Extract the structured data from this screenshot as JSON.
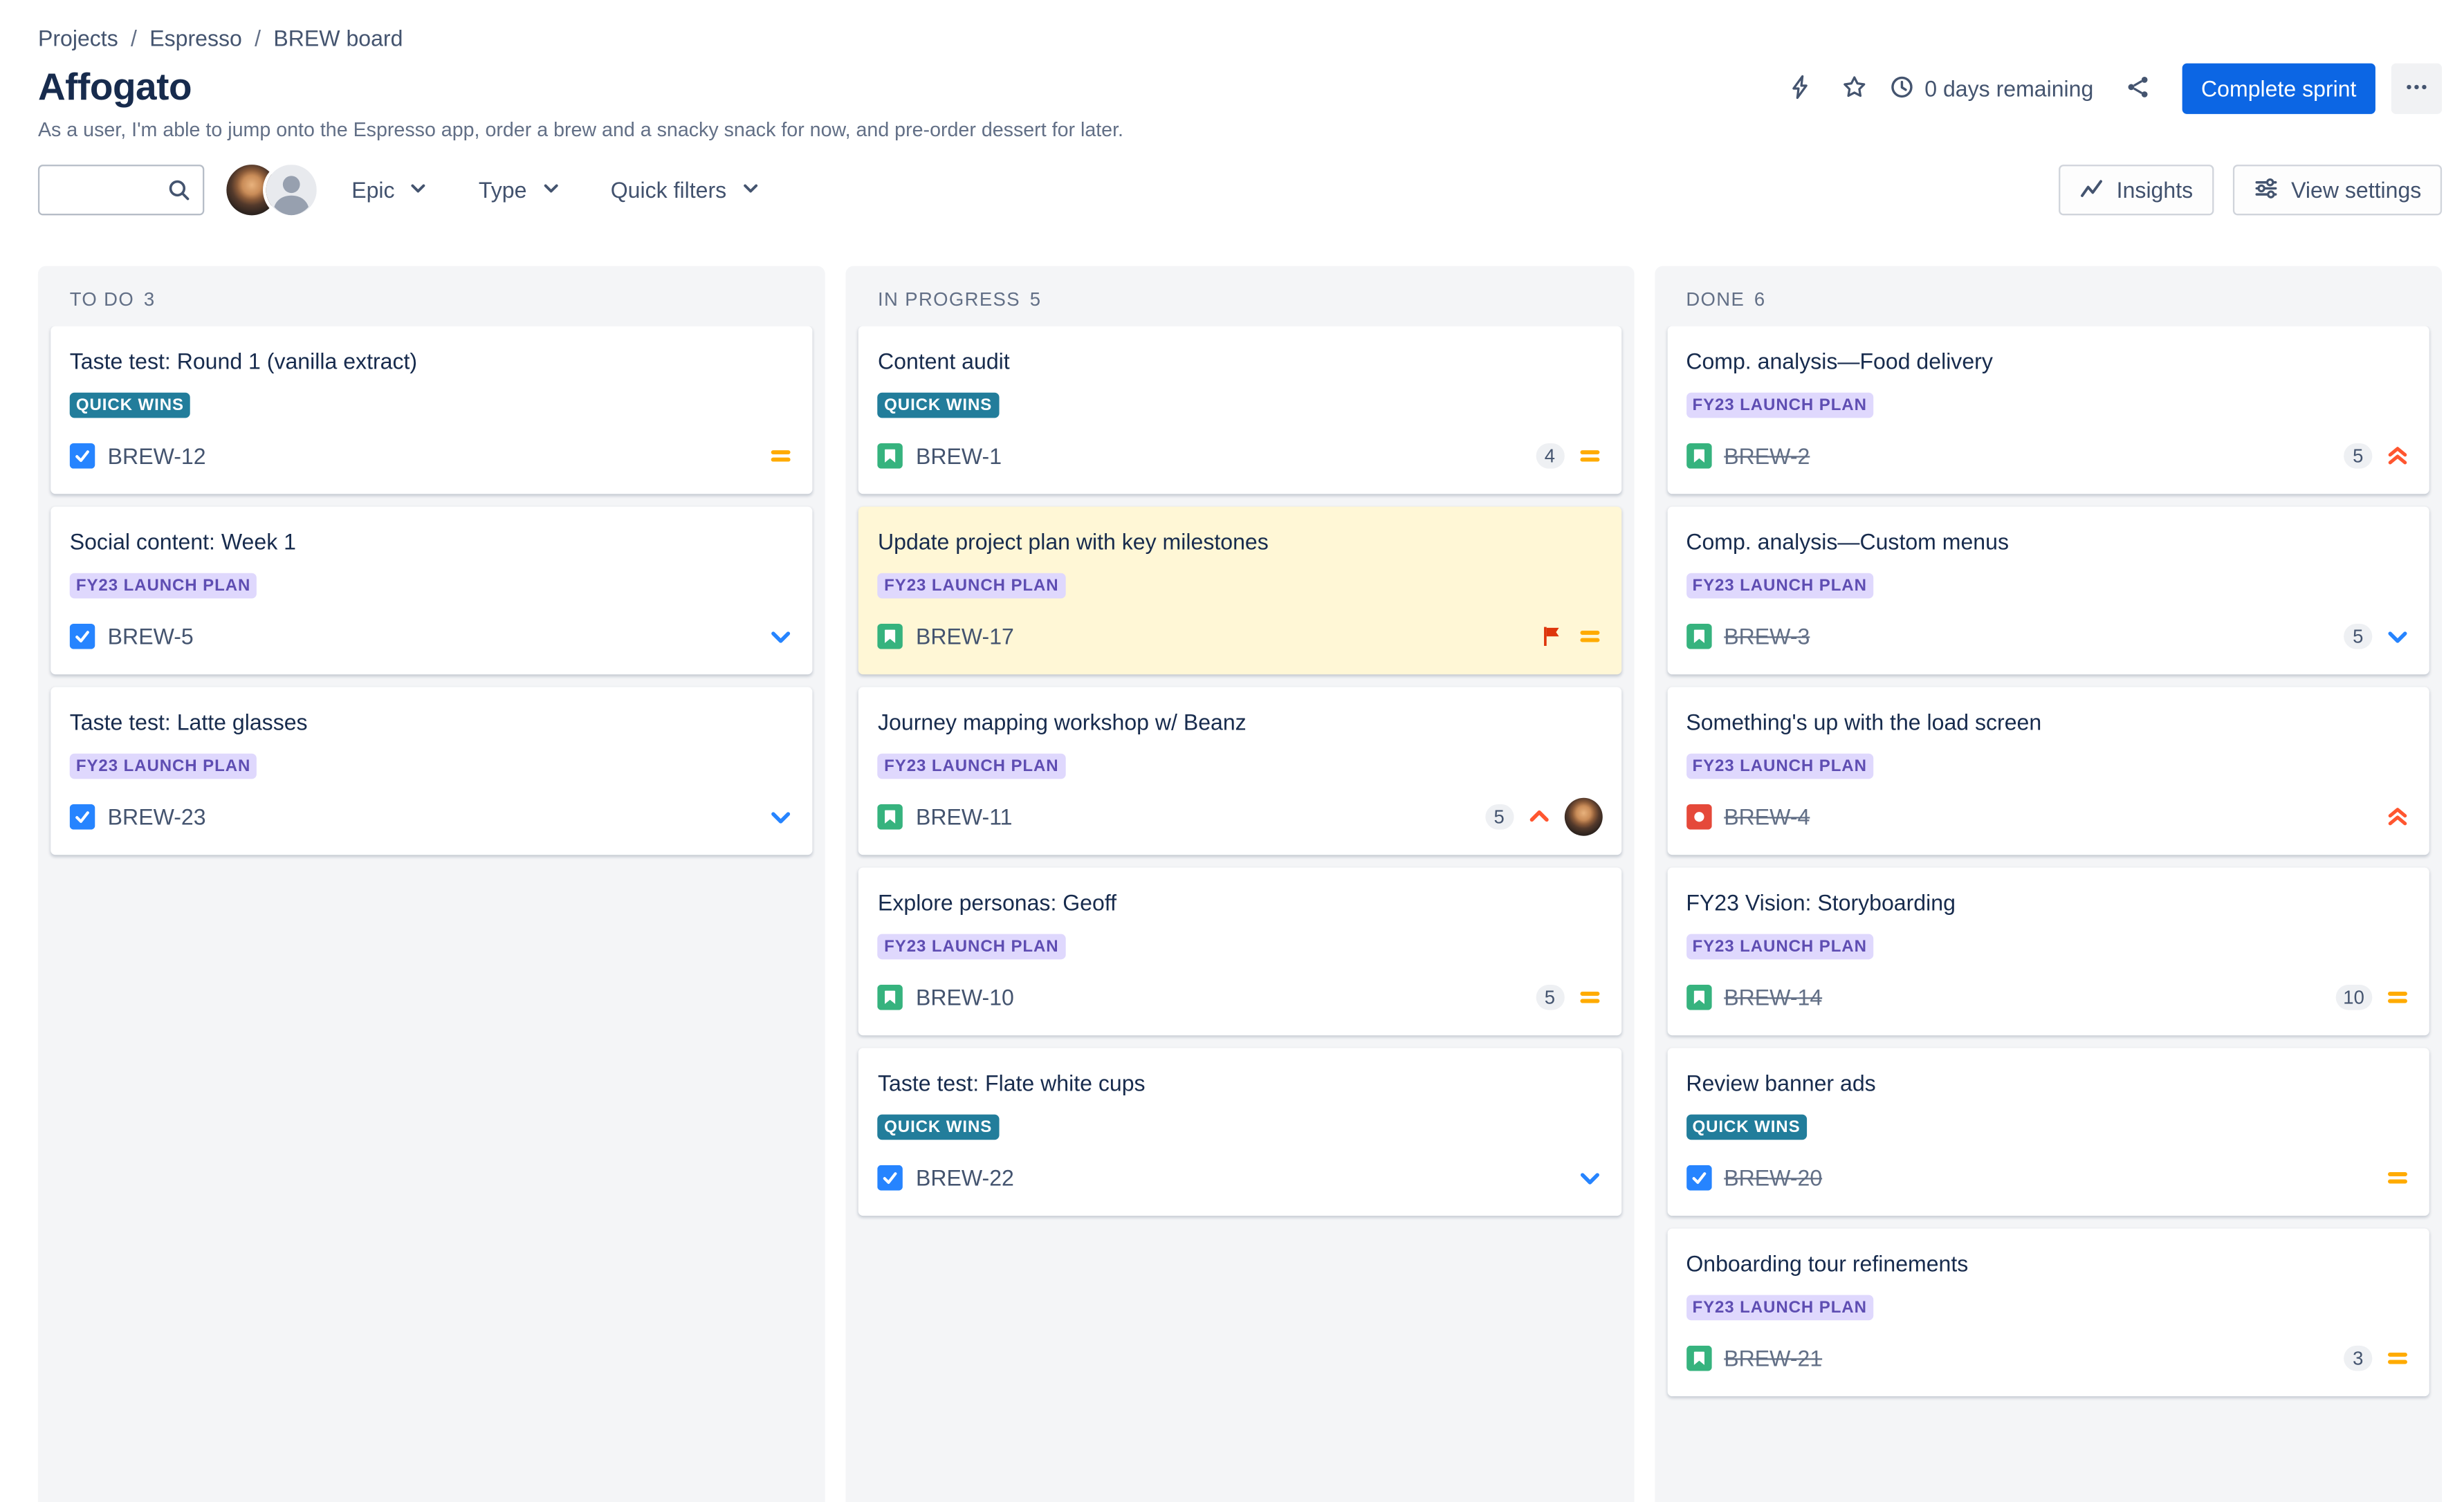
{
  "colors": {
    "accent": "#0C66E4",
    "page_bg": "#FFFFFF",
    "column_bg": "#F4F5F7",
    "card_bg": "#FFFFFF",
    "flagged_card_bg": "#FFF7D6",
    "text_primary": "#172B4D",
    "text_secondary": "#626F86",
    "epic_teal_bg": "#227D9B",
    "epic_teal_text": "#FFFFFF",
    "epic_purple_bg": "#DFD8FD",
    "epic_purple_text": "#5E4DB2",
    "task_blue": "#2684FF",
    "story_green": "#36B37E",
    "bug_red": "#E5493A",
    "priority_medium": "#FFAB00",
    "priority_low": "#2684FF",
    "priority_high": "#FF5630",
    "priority_highest": "#FF5630",
    "flag_red": "#DE350B"
  },
  "icons": [
    "automation-lightning",
    "star",
    "clock",
    "share",
    "more-ellipsis",
    "search",
    "chevron-down",
    "insights-chart",
    "view-settings-sliders",
    "task-check",
    "story-bookmark",
    "bug-dot",
    "priority-medium-equals",
    "priority-low-chevron",
    "priority-high-chevron",
    "priority-highest-double-chevron",
    "flag",
    "avatar-photo",
    "avatar-generic"
  ],
  "breadcrumb": {
    "separator": "/",
    "items": [
      "Projects",
      "Espresso",
      "BREW board"
    ]
  },
  "header": {
    "title": "Affogato",
    "subtitle": "As a user, I'm able to jump onto the Espresso app, order a brew and a snacky snack for now, and pre-order dessert for later.",
    "days_remaining": "0 days remaining",
    "complete_sprint_label": "Complete sprint"
  },
  "toolbar": {
    "search": {
      "value": "",
      "placeholder": ""
    },
    "filters": [
      {
        "label": "Epic"
      },
      {
        "label": "Type"
      },
      {
        "label": "Quick filters"
      }
    ],
    "insights_label": "Insights",
    "view_settings_label": "View settings"
  },
  "board": {
    "columns": [
      {
        "name": "TO DO",
        "count": 3,
        "cards": [
          {
            "title": "Taste test: Round 1 (vanilla extract)",
            "epic": "QUICK WINS",
            "epic_style": "teal",
            "type": "task",
            "key": "BREW-12",
            "done": false,
            "estimate": null,
            "priority": "medium",
            "flagged": false,
            "assignee": false
          },
          {
            "title": "Social content: Week 1",
            "epic": "FY23 LAUNCH PLAN",
            "epic_style": "purple",
            "type": "task",
            "key": "BREW-5",
            "done": false,
            "estimate": null,
            "priority": "low",
            "flagged": false,
            "assignee": false
          },
          {
            "title": "Taste test: Latte glasses",
            "epic": "FY23 LAUNCH PLAN",
            "epic_style": "purple",
            "type": "task",
            "key": "BREW-23",
            "done": false,
            "estimate": null,
            "priority": "low",
            "flagged": false,
            "assignee": false
          }
        ]
      },
      {
        "name": "IN PROGRESS",
        "count": 5,
        "cards": [
          {
            "title": "Content audit",
            "epic": "QUICK WINS",
            "epic_style": "teal",
            "type": "story",
            "key": "BREW-1",
            "done": false,
            "estimate": "4",
            "priority": "medium",
            "flagged": false,
            "assignee": false
          },
          {
            "title": "Update project plan with key milestones",
            "epic": "FY23 LAUNCH PLAN",
            "epic_style": "purple",
            "type": "story",
            "key": "BREW-17",
            "done": false,
            "estimate": null,
            "priority": "medium",
            "flagged": true,
            "assignee": false
          },
          {
            "title": "Journey mapping workshop w/ Beanz",
            "epic": "FY23 LAUNCH PLAN",
            "epic_style": "purple",
            "type": "story",
            "key": "BREW-11",
            "done": false,
            "estimate": "5",
            "priority": "high",
            "flagged": false,
            "assignee": true
          },
          {
            "title": "Explore personas: Geoff",
            "epic": "FY23 LAUNCH PLAN",
            "epic_style": "purple",
            "type": "story",
            "key": "BREW-10",
            "done": false,
            "estimate": "5",
            "priority": "medium",
            "flagged": false,
            "assignee": false
          },
          {
            "title": "Taste test: Flate white cups",
            "epic": "QUICK WINS",
            "epic_style": "teal",
            "type": "task",
            "key": "BREW-22",
            "done": false,
            "estimate": null,
            "priority": "low",
            "flagged": false,
            "assignee": false
          }
        ]
      },
      {
        "name": "DONE",
        "count": 6,
        "cards": [
          {
            "title": "Comp. analysis—Food delivery",
            "epic": "FY23 LAUNCH PLAN",
            "epic_style": "purple",
            "type": "story",
            "key": "BREW-2",
            "done": true,
            "estimate": "5",
            "priority": "highest",
            "flagged": false,
            "assignee": false
          },
          {
            "title": "Comp. analysis—Custom menus",
            "epic": "FY23 LAUNCH PLAN",
            "epic_style": "purple",
            "type": "story",
            "key": "BREW-3",
            "done": true,
            "estimate": "5",
            "priority": "low",
            "flagged": false,
            "assignee": false
          },
          {
            "title": "Something's up with the load screen",
            "epic": "FY23 LAUNCH PLAN",
            "epic_style": "purple",
            "type": "bug",
            "key": "BREW-4",
            "done": true,
            "estimate": null,
            "priority": "highest",
            "flagged": false,
            "assignee": false
          },
          {
            "title": "FY23 Vision: Storyboarding",
            "epic": "FY23 LAUNCH PLAN",
            "epic_style": "purple",
            "type": "story",
            "key": "BREW-14",
            "done": true,
            "estimate": "10",
            "priority": "medium",
            "flagged": false,
            "assignee": false
          },
          {
            "title": "Review banner ads",
            "epic": "QUICK WINS",
            "epic_style": "teal",
            "type": "task",
            "key": "BREW-20",
            "done": true,
            "estimate": null,
            "priority": "medium",
            "flagged": false,
            "assignee": false
          },
          {
            "title": "Onboarding tour refinements",
            "epic": "FY23 LAUNCH PLAN",
            "epic_style": "purple",
            "type": "story",
            "key": "BREW-21",
            "done": true,
            "estimate": "3",
            "priority": "medium",
            "flagged": false,
            "assignee": false
          }
        ]
      }
    ]
  }
}
